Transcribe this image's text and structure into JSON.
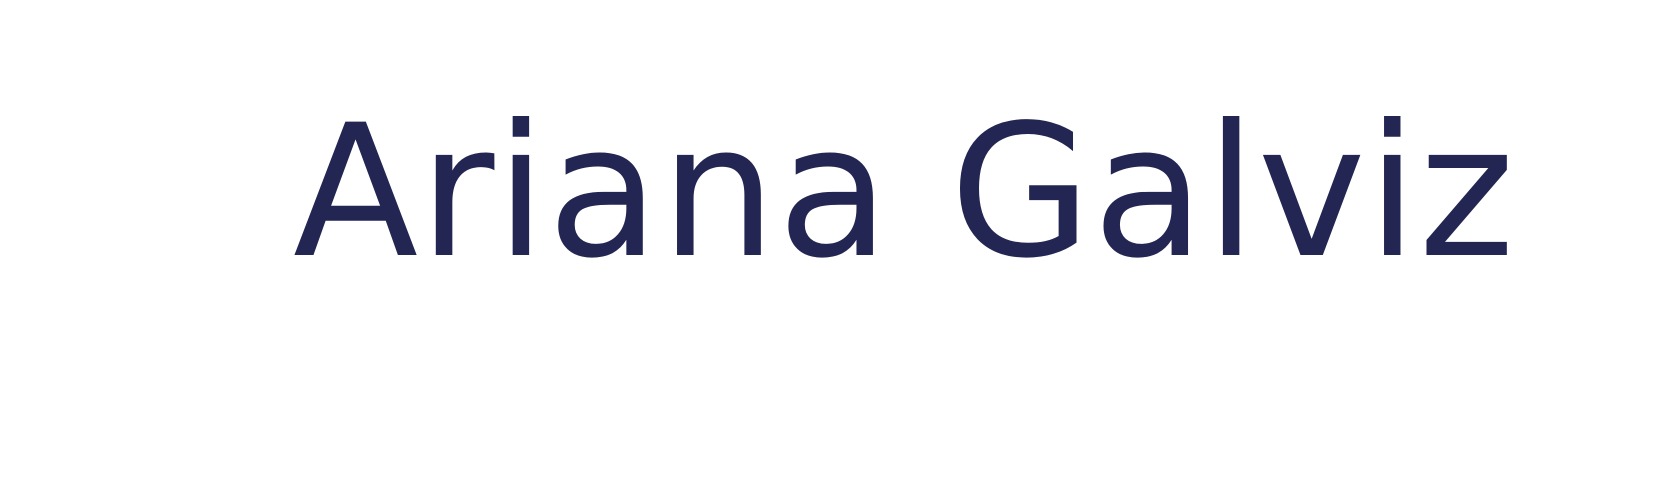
{
  "name": "Ariana Galviz",
  "colors": {
    "text": "#232652",
    "background": "#ffffff"
  }
}
